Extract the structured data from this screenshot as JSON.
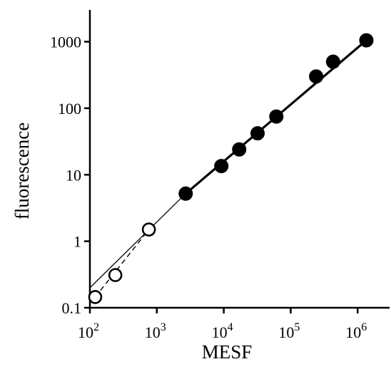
{
  "chart_data": {
    "type": "scatter",
    "title": "",
    "xlabel": "MESF",
    "ylabel": "fluorescence",
    "x_scale": "log",
    "y_scale": "log",
    "xlim": [
      100,
      3000000
    ],
    "ylim": [
      0.1,
      3000
    ],
    "x_ticks": [
      {
        "value": 100,
        "base": "10",
        "exp": "2"
      },
      {
        "value": 1000,
        "base": "10",
        "exp": "3"
      },
      {
        "value": 10000,
        "base": "10",
        "exp": "4"
      },
      {
        "value": 100000,
        "base": "10",
        "exp": "5"
      },
      {
        "value": 1000000,
        "base": "10",
        "exp": "6"
      }
    ],
    "y_ticks": [
      {
        "value": 0.1,
        "label": "0.1"
      },
      {
        "value": 1,
        "label": "1"
      },
      {
        "value": 10,
        "label": "10"
      },
      {
        "value": 100,
        "label": "100"
      },
      {
        "value": 1000,
        "label": "1000"
      }
    ],
    "grid": false,
    "legend": "none",
    "series": [
      {
        "marker": "filled-circle",
        "color": "#000000",
        "points": [
          {
            "x": 2700,
            "y": 5.2
          },
          {
            "x": 9200,
            "y": 13.5
          },
          {
            "x": 17000,
            "y": 24
          },
          {
            "x": 32000,
            "y": 42
          },
          {
            "x": 61000,
            "y": 75
          },
          {
            "x": 240000,
            "y": 300
          },
          {
            "x": 430000,
            "y": 500
          },
          {
            "x": 1350000,
            "y": 1050
          }
        ]
      },
      {
        "marker": "open-circle",
        "color": "#000000",
        "points": [
          {
            "x": 120,
            "y": 0.145
          },
          {
            "x": 240,
            "y": 0.31
          },
          {
            "x": 760,
            "y": 1.5
          }
        ]
      }
    ],
    "lines": [
      {
        "style": "solid-thin",
        "from": {
          "x": 100,
          "y": 0.2
        },
        "to": {
          "x": 2700,
          "y": 5.2
        }
      },
      {
        "style": "solid-thick",
        "from": {
          "x": 2700,
          "y": 5.2
        },
        "to": {
          "x": 1350000,
          "y": 1050
        }
      },
      {
        "style": "dashed",
        "from": {
          "x": 120,
          "y": 0.145
        },
        "to": {
          "x": 760,
          "y": 1.5
        }
      }
    ]
  }
}
